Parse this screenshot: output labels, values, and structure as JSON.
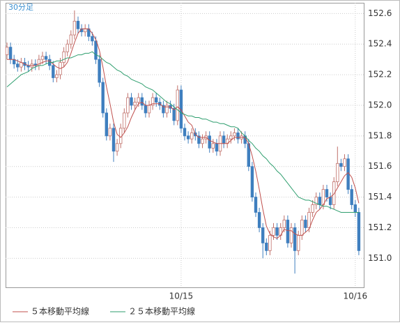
{
  "chart_data": {
    "type": "candlestick",
    "label": "30分足",
    "categories": [
      null,
      null,
      null,
      null,
      null,
      null,
      null,
      null,
      null,
      null,
      null,
      null,
      null,
      null,
      null,
      null,
      null,
      null,
      null,
      null,
      null,
      null,
      null,
      null,
      null,
      null,
      null,
      null,
      null,
      null,
      null,
      null,
      null,
      null,
      null,
      null,
      null,
      null,
      null,
      null,
      null,
      null,
      null,
      null,
      null,
      null,
      null,
      null,
      null,
      "10/15",
      null,
      null,
      null,
      null,
      null,
      null,
      null,
      null,
      null,
      null,
      null,
      null,
      null,
      null,
      null,
      null,
      null,
      null,
      null,
      null,
      null,
      null,
      null,
      null,
      null,
      null,
      null,
      null,
      null,
      null,
      null,
      null,
      null,
      null,
      null,
      null,
      null,
      null,
      null,
      null,
      null,
      null,
      null,
      null,
      null,
      null,
      null,
      null,
      "10/16",
      null
    ],
    "open": [
      152.33,
      152.38,
      152.3,
      152.27,
      152.25,
      152.28,
      152.26,
      152.25,
      152.27,
      152.26,
      152.3,
      152.32,
      152.3,
      152.26,
      152.18,
      152.2,
      152.28,
      152.35,
      152.4,
      152.46,
      152.55,
      152.5,
      152.48,
      152.5,
      152.45,
      152.42,
      152.3,
      152.15,
      151.95,
      151.8,
      151.85,
      151.7,
      151.75,
      151.85,
      151.95,
      152.05,
      152.0,
      152.02,
      152.05,
      152.0,
      151.95,
      152.0,
      152.05,
      152.02,
      152.0,
      151.95,
      152.0,
      151.98,
      151.9,
      152.1,
      151.85,
      151.8,
      151.78,
      151.82,
      151.8,
      151.75,
      151.78,
      151.8,
      151.72,
      151.75,
      151.7,
      151.8,
      151.75,
      151.78,
      151.8,
      151.82,
      151.78,
      151.8,
      151.75,
      151.6,
      151.4,
      151.3,
      151.2,
      151.1,
      151.05,
      151.15,
      151.2,
      151.15,
      151.2,
      151.25,
      151.1,
      151.2,
      151.05,
      151.15,
      151.25,
      151.2,
      151.3,
      151.35,
      151.4,
      151.35,
      151.45,
      151.4,
      151.35,
      151.5,
      151.62,
      151.6,
      151.65,
      151.45,
      151.35,
      151.3
    ],
    "high": [
      152.41,
      152.41,
      152.33,
      152.3,
      152.31,
      152.31,
      152.29,
      152.3,
      152.3,
      152.33,
      152.35,
      152.35,
      152.33,
      152.29,
      152.23,
      152.31,
      152.38,
      152.43,
      152.49,
      152.62,
      152.58,
      152.53,
      152.53,
      152.53,
      152.48,
      152.45,
      152.33,
      152.18,
      151.98,
      151.88,
      151.88,
      151.78,
      151.88,
      151.98,
      152.08,
      152.08,
      152.05,
      152.08,
      152.08,
      152.03,
      152.03,
      152.08,
      152.08,
      152.05,
      152.03,
      152.03,
      152.03,
      152.01,
      152.13,
      152.13,
      151.88,
      151.83,
      151.85,
      151.85,
      151.83,
      151.81,
      151.83,
      151.83,
      151.78,
      151.78,
      151.83,
      151.83,
      151.81,
      151.83,
      151.85,
      151.85,
      151.83,
      151.83,
      151.78,
      151.63,
      151.43,
      151.33,
      151.23,
      151.13,
      151.18,
      151.23,
      151.23,
      151.23,
      151.28,
      151.28,
      151.23,
      151.23,
      151.18,
      151.28,
      151.28,
      151.33,
      151.38,
      151.43,
      151.43,
      151.48,
      151.48,
      151.43,
      151.53,
      151.73,
      151.65,
      151.68,
      151.68,
      151.48,
      151.38,
      151.33
    ],
    "low": [
      152.3,
      152.27,
      152.24,
      152.22,
      152.22,
      152.23,
      152.22,
      152.22,
      152.23,
      152.23,
      152.27,
      152.27,
      152.23,
      152.15,
      152.15,
      152.17,
      152.25,
      152.32,
      152.37,
      152.43,
      152.47,
      152.45,
      152.45,
      152.42,
      152.39,
      152.27,
      152.12,
      151.92,
      151.77,
      151.77,
      151.63,
      151.67,
      151.72,
      151.82,
      151.92,
      151.97,
      151.97,
      151.99,
      151.97,
      151.92,
      151.92,
      151.97,
      151.99,
      151.97,
      151.92,
      151.92,
      151.95,
      151.87,
      151.87,
      151.82,
      151.77,
      151.75,
      151.75,
      151.77,
      151.72,
      151.72,
      151.75,
      151.69,
      151.69,
      151.67,
      151.67,
      151.72,
      151.72,
      151.75,
      151.77,
      151.75,
      151.75,
      151.72,
      151.57,
      151.37,
      151.27,
      151.17,
      151.0,
      151.02,
      151.02,
      151.12,
      151.12,
      151.12,
      151.17,
      151.07,
      151.07,
      150.9,
      151.02,
      151.12,
      151.17,
      151.17,
      151.27,
      151.32,
      151.32,
      151.32,
      151.37,
      151.32,
      151.32,
      151.47,
      151.57,
      151.57,
      151.42,
      151.32,
      151.27,
      151.02
    ],
    "close": [
      152.38,
      152.3,
      152.27,
      152.25,
      152.28,
      152.26,
      152.25,
      152.27,
      152.26,
      152.3,
      152.32,
      152.3,
      152.26,
      152.18,
      152.2,
      152.28,
      152.35,
      152.4,
      152.46,
      152.55,
      152.5,
      152.48,
      152.5,
      152.45,
      152.42,
      152.3,
      152.15,
      151.95,
      151.8,
      151.85,
      151.7,
      151.75,
      151.85,
      151.95,
      152.05,
      152.0,
      152.02,
      152.05,
      152.0,
      151.95,
      152.0,
      152.05,
      152.02,
      152.0,
      151.95,
      152.0,
      151.98,
      151.9,
      152.1,
      151.85,
      151.8,
      151.78,
      151.82,
      151.8,
      151.75,
      151.78,
      151.8,
      151.72,
      151.75,
      151.7,
      151.8,
      151.75,
      151.78,
      151.8,
      151.82,
      151.78,
      151.8,
      151.75,
      151.6,
      151.4,
      151.3,
      151.2,
      151.1,
      151.05,
      151.15,
      151.2,
      151.15,
      151.2,
      151.25,
      151.1,
      151.2,
      151.05,
      151.15,
      151.25,
      151.2,
      151.3,
      151.35,
      151.4,
      151.35,
      151.45,
      151.4,
      151.35,
      151.5,
      151.62,
      151.6,
      151.65,
      151.45,
      151.35,
      151.3,
      151.05
    ],
    "up_color": "#c0706a",
    "down_color": "#3f7fbf",
    "series": [
      {
        "name": "５本移動平均線",
        "color": "#c0504d",
        "values": [
          152.3,
          152.3,
          152.3,
          152.29,
          152.28,
          152.27,
          152.26,
          152.26,
          152.26,
          152.27,
          152.28,
          152.29,
          152.29,
          152.27,
          152.25,
          152.24,
          152.25,
          152.28,
          152.34,
          152.41,
          152.47,
          152.5,
          152.5,
          152.5,
          152.47,
          152.43,
          152.36,
          152.25,
          152.12,
          152.01,
          151.89,
          151.81,
          151.79,
          151.82,
          151.86,
          151.92,
          151.97,
          152.01,
          152.02,
          152.0,
          152.0,
          152.01,
          152.01,
          152.01,
          151.99,
          151.99,
          151.99,
          151.97,
          151.99,
          151.97,
          151.93,
          151.89,
          151.87,
          151.81,
          151.79,
          151.79,
          151.79,
          151.77,
          151.76,
          151.75,
          151.75,
          151.75,
          151.75,
          151.77,
          151.79,
          151.79,
          151.79,
          151.79,
          151.75,
          151.67,
          151.57,
          151.45,
          151.32,
          151.21,
          151.16,
          151.14,
          151.13,
          151.15,
          151.19,
          151.18,
          151.18,
          151.16,
          151.15,
          151.15,
          151.17,
          151.19,
          151.25,
          151.3,
          151.32,
          151.35,
          151.39,
          151.4,
          151.42,
          151.46,
          151.5,
          151.54,
          151.56,
          151.53,
          151.46,
          151.36
        ]
      },
      {
        "name": "２５本移動平均線",
        "color": "#2e9e6e",
        "values": [
          152.12,
          152.14,
          152.16,
          152.18,
          152.2,
          152.21,
          152.22,
          152.24,
          152.25,
          152.26,
          152.26,
          152.27,
          152.28,
          152.28,
          152.29,
          152.29,
          152.3,
          152.31,
          152.31,
          152.32,
          152.33,
          152.33,
          152.34,
          152.34,
          152.35,
          152.33,
          152.32,
          152.3,
          152.28,
          152.27,
          152.25,
          152.23,
          152.22,
          152.2,
          152.19,
          152.17,
          152.16,
          152.15,
          152.14,
          152.12,
          152.11,
          152.1,
          152.08,
          152.06,
          152.04,
          152.02,
          152.01,
          151.99,
          151.97,
          151.95,
          151.94,
          151.93,
          151.93,
          151.92,
          151.92,
          151.91,
          151.91,
          151.9,
          151.89,
          151.89,
          151.88,
          151.88,
          151.87,
          151.86,
          151.86,
          151.85,
          151.82,
          151.8,
          151.77,
          151.75,
          151.72,
          151.7,
          151.67,
          151.65,
          151.62,
          151.6,
          151.57,
          151.55,
          151.52,
          151.49,
          151.46,
          151.43,
          151.4,
          151.39,
          151.38,
          151.38,
          151.37,
          151.36,
          151.35,
          151.34,
          151.34,
          151.33,
          151.32,
          151.31,
          151.3,
          151.3,
          151.3,
          151.3,
          151.3,
          151.3
        ]
      }
    ],
    "ylim": [
      150.81,
      152.67
    ],
    "yticks": [
      {
        "value": 151.0,
        "label": "151.0"
      },
      151.2,
      151.4,
      151.6,
      151.8,
      {
        "value": 152.0,
        "label": "152.0"
      },
      152.2,
      152.4,
      152.6
    ],
    "grid": true
  }
}
